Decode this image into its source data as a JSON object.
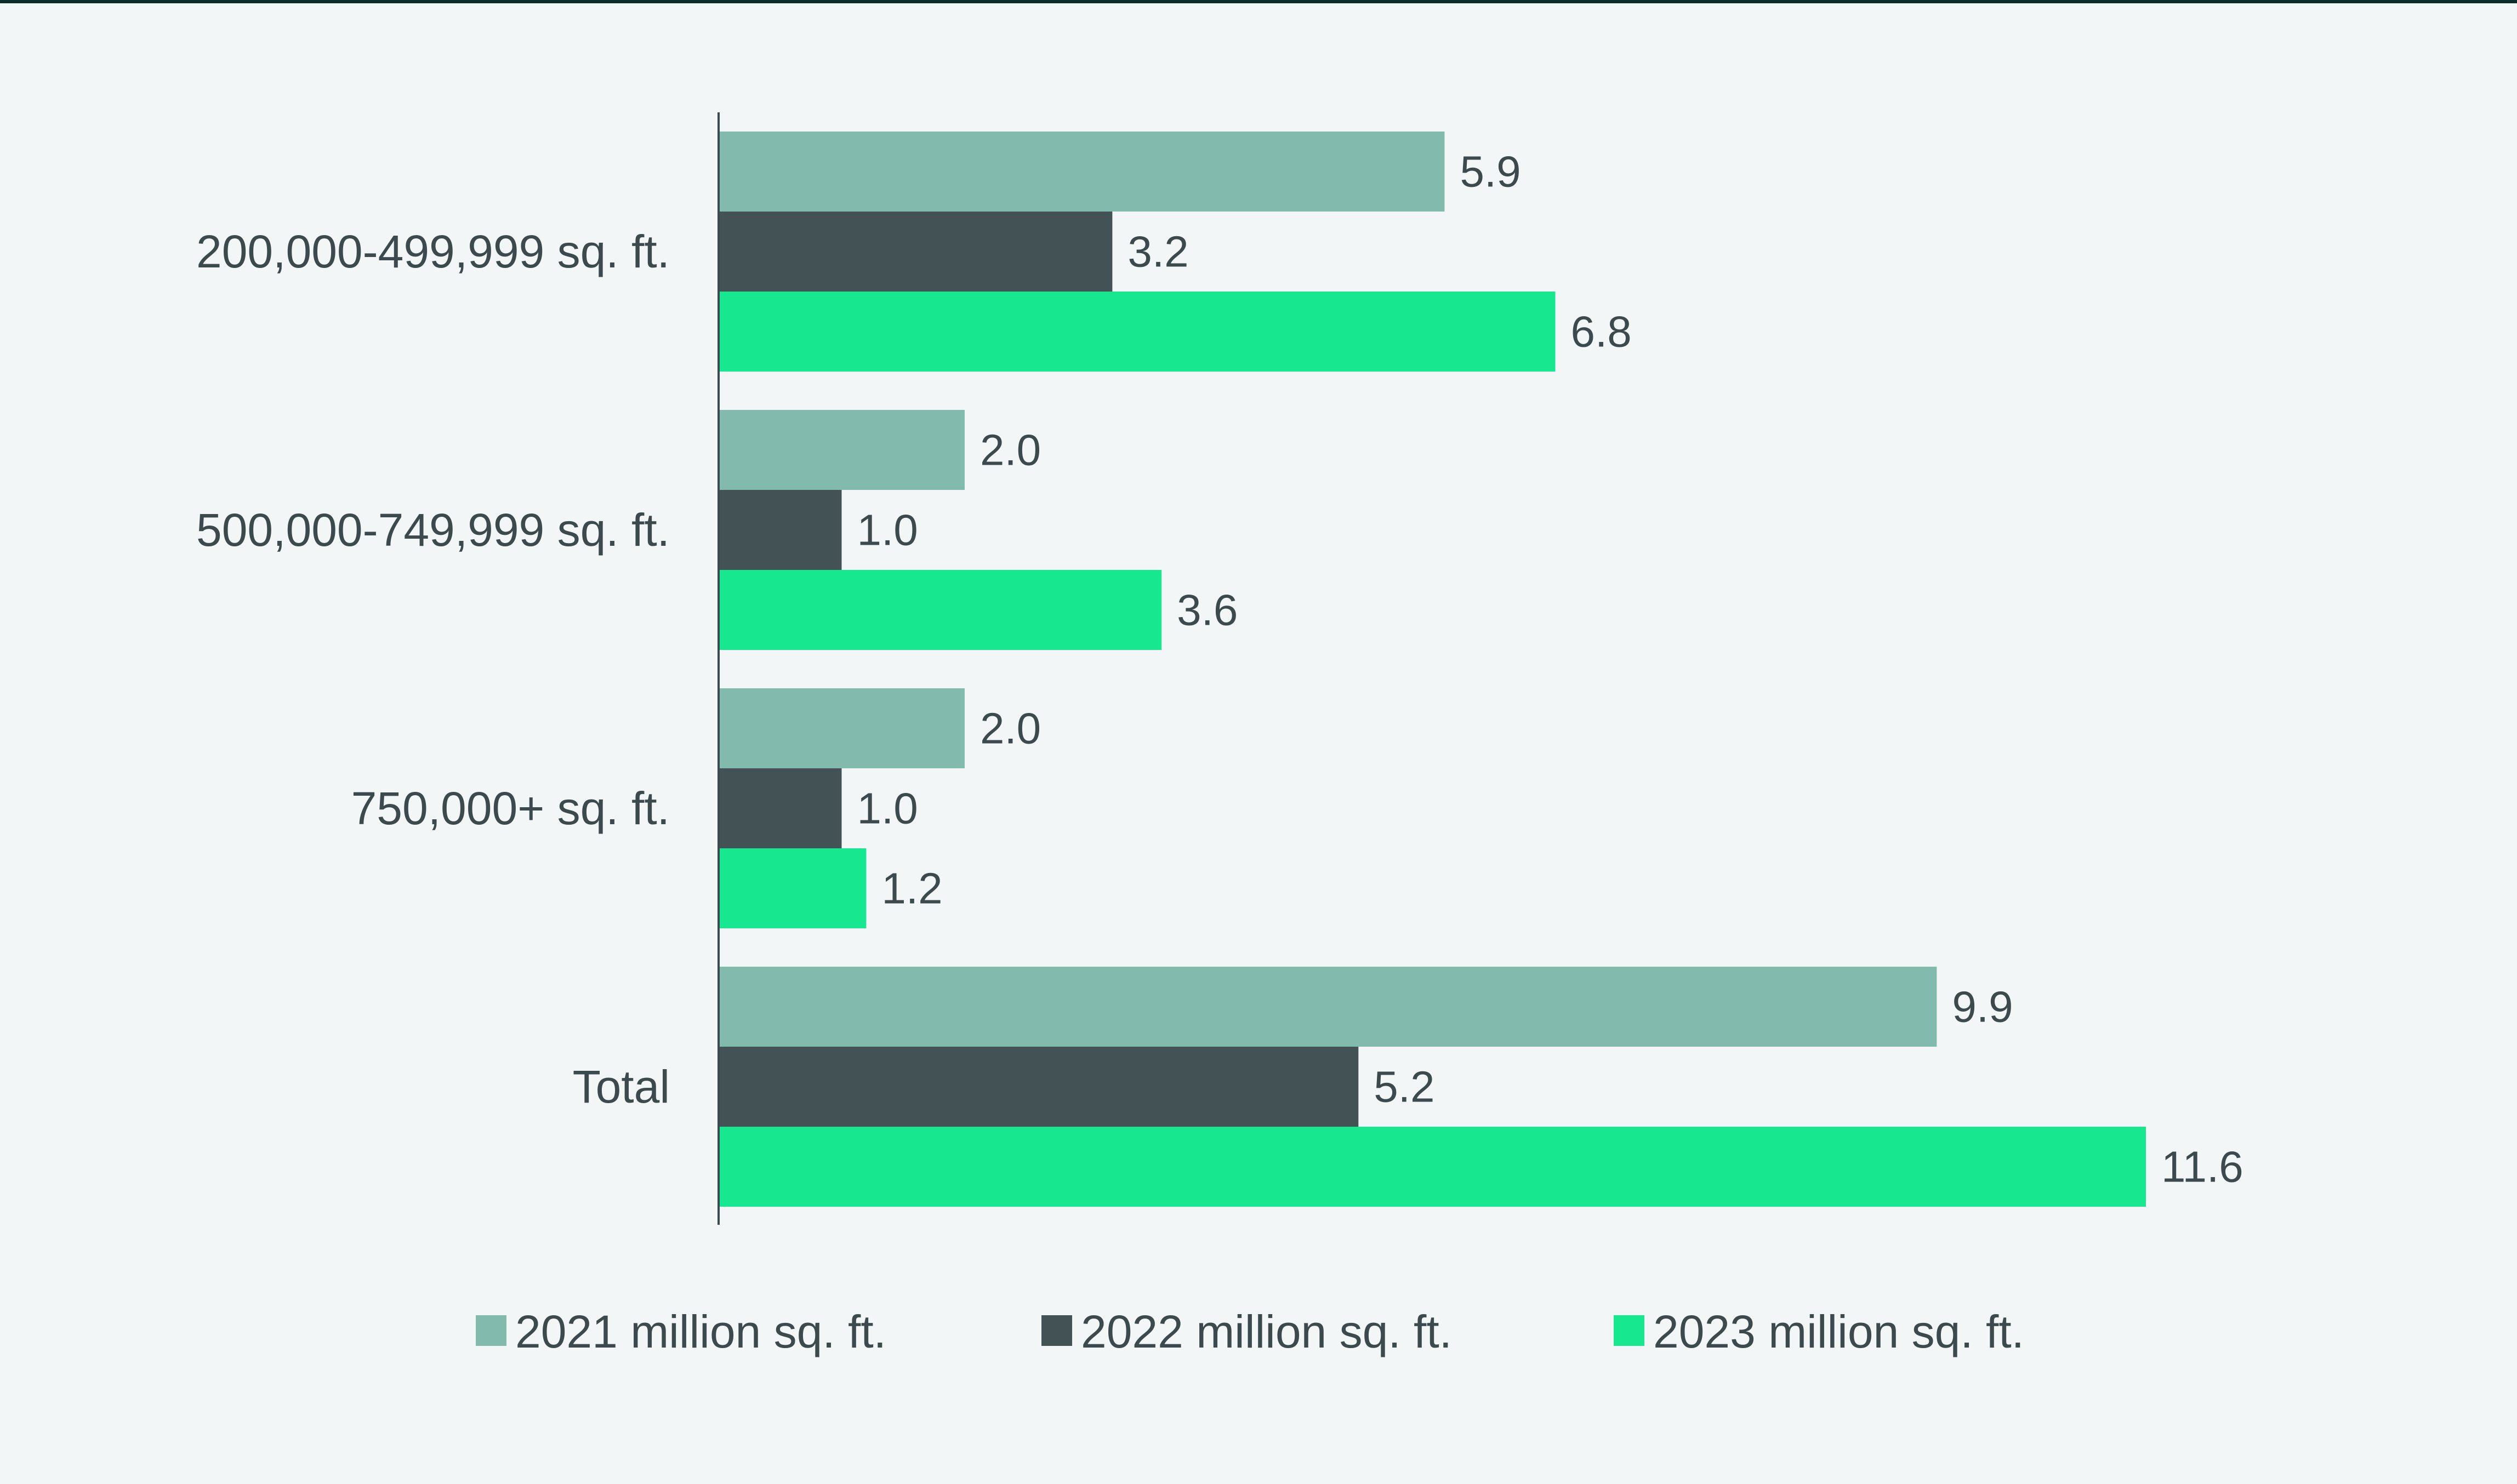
{
  "chart_data": {
    "type": "bar",
    "orientation": "horizontal",
    "title": "",
    "xlabel": "",
    "ylabel": "",
    "xlim": [
      0,
      11.6
    ],
    "grid": false,
    "legend_position": "bottom",
    "categories": [
      "200,000-499,999 sq. ft.",
      "500,000-749,999 sq. ft.",
      "750,000+ sq. ft.",
      "Total"
    ],
    "series": [
      {
        "name": "2021 million sq. ft.",
        "color": "#82bbad",
        "values": [
          5.9,
          2.0,
          2.0,
          9.9
        ],
        "labels": [
          "5.9",
          "2.0",
          "2.0",
          "9.9"
        ]
      },
      {
        "name": "2022 million sq. ft.",
        "color": "#435254",
        "values": [
          3.2,
          1.0,
          1.0,
          5.2
        ],
        "labels": [
          "3.2",
          "1.0",
          "1.0",
          "5.2"
        ]
      },
      {
        "name": "2023 million sq. ft.",
        "color": "#17e88f",
        "values": [
          6.8,
          3.6,
          1.2,
          11.6
        ],
        "labels": [
          "6.8",
          "3.6",
          "1.2",
          "11.6"
        ]
      }
    ]
  },
  "colors": {
    "background": "#f2f6f7",
    "text": "#3c4a4d",
    "axis": "#3c4a4d",
    "top_rule": "#0f2a2a"
  }
}
